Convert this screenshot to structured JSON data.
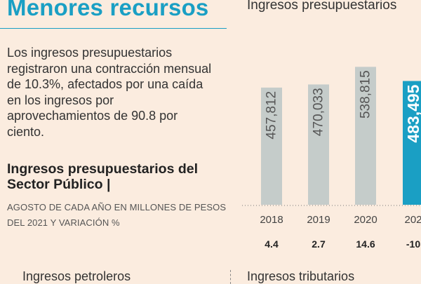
{
  "header": {
    "headline": "Menores recursos",
    "lead": "Los ingresos presupuestarios registraron una contracción mensual de 10.3%, afectados por una caída en los ingresos por aprovechamientos de 90.8 por ciento."
  },
  "panels": {
    "top_right_title": "Ingresos presupuestarios",
    "bottom_left_title": "Ingresos petroleros",
    "bottom_right_title": "Ingresos tributarios"
  },
  "colors": {
    "accent": "#1a9fc4",
    "bar_gray": "#c5ccca",
    "bar_highlight": "#1a9fc4",
    "background": "#fbecdf"
  },
  "chart_data": {
    "type": "bar",
    "title": "Ingresos presupuestarios del Sector Público |",
    "subtitle": "AGOSTO DE CADA AÑO EN MILLONES DE PESOS DEL 2021 Y VARIACIÓN %",
    "categories": [
      "2018",
      "2019",
      "2020",
      "202"
    ],
    "values": [
      457812,
      470033,
      538815,
      483495
    ],
    "value_labels": [
      "457,812",
      "470,033",
      "538,815",
      "483,495"
    ],
    "variation_labels": [
      "4.4",
      "2.7",
      "14.6",
      "-10"
    ],
    "highlight_index": 3,
    "ylim": [
      0,
      600000
    ],
    "grid": false,
    "legend": "none"
  }
}
